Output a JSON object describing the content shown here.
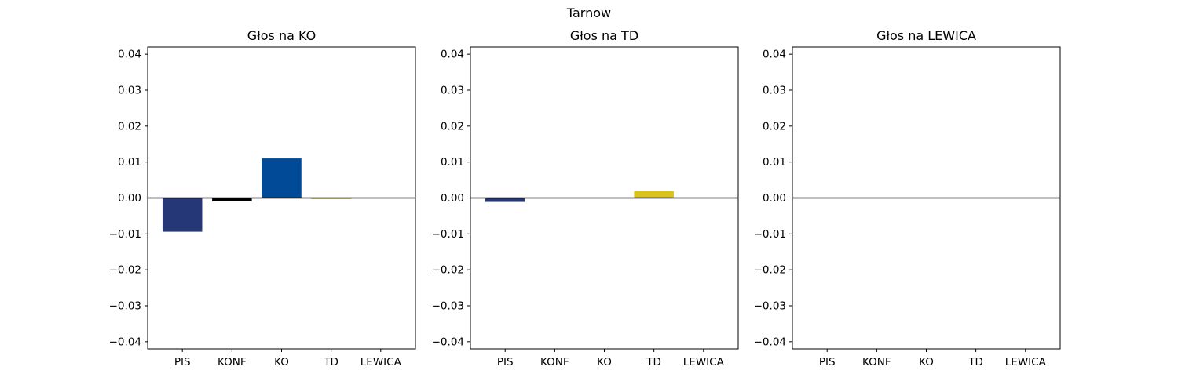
{
  "figure": {
    "suptitle": "Tarnow"
  },
  "chart_data": [
    {
      "type": "bar",
      "title": "Głos na KO",
      "categories": [
        "PIS",
        "KONF",
        "KO",
        "TD",
        "LEWICA"
      ],
      "values": [
        -0.0094,
        -0.0009,
        0.011,
        -0.0003,
        0.0
      ],
      "colors": [
        "#263778",
        "#000000",
        "#004a98",
        "#d9c21b",
        "#b3153e"
      ],
      "ylim": [
        -0.042,
        0.042
      ],
      "yticks": [
        -0.04,
        -0.03,
        -0.02,
        -0.01,
        0.0,
        0.01,
        0.02,
        0.03,
        0.04
      ],
      "ytick_labels": [
        "−0.04",
        "−0.03",
        "−0.02",
        "−0.01",
        "0.00",
        "0.01",
        "0.02",
        "0.03",
        "0.04"
      ],
      "zero_line": true,
      "grid": false
    },
    {
      "type": "bar",
      "title": "Głos na TD",
      "categories": [
        "PIS",
        "KONF",
        "KO",
        "TD",
        "LEWICA"
      ],
      "values": [
        -0.0011,
        0.0,
        0.0,
        0.0019,
        0.0
      ],
      "colors": [
        "#263778",
        "#000000",
        "#004a98",
        "#d9c21b",
        "#b3153e"
      ],
      "ylim": [
        -0.042,
        0.042
      ],
      "yticks": [
        -0.04,
        -0.03,
        -0.02,
        -0.01,
        0.0,
        0.01,
        0.02,
        0.03,
        0.04
      ],
      "ytick_labels": [
        "−0.04",
        "−0.03",
        "−0.02",
        "−0.01",
        "0.00",
        "0.01",
        "0.02",
        "0.03",
        "0.04"
      ],
      "zero_line": true,
      "grid": false
    },
    {
      "type": "bar",
      "title": "Głos na LEWICA",
      "categories": [
        "PIS",
        "KONF",
        "KO",
        "TD",
        "LEWICA"
      ],
      "values": [
        0.0,
        0.0,
        0.0,
        0.0,
        0.0
      ],
      "colors": [
        "#263778",
        "#000000",
        "#004a98",
        "#d9c21b",
        "#b3153e"
      ],
      "ylim": [
        -0.042,
        0.042
      ],
      "yticks": [
        -0.04,
        -0.03,
        -0.02,
        -0.01,
        0.0,
        0.01,
        0.02,
        0.03,
        0.04
      ],
      "ytick_labels": [
        "−0.04",
        "−0.03",
        "−0.02",
        "−0.01",
        "0.00",
        "0.01",
        "0.02",
        "0.03",
        "0.04"
      ],
      "zero_line": true,
      "grid": false
    }
  ]
}
